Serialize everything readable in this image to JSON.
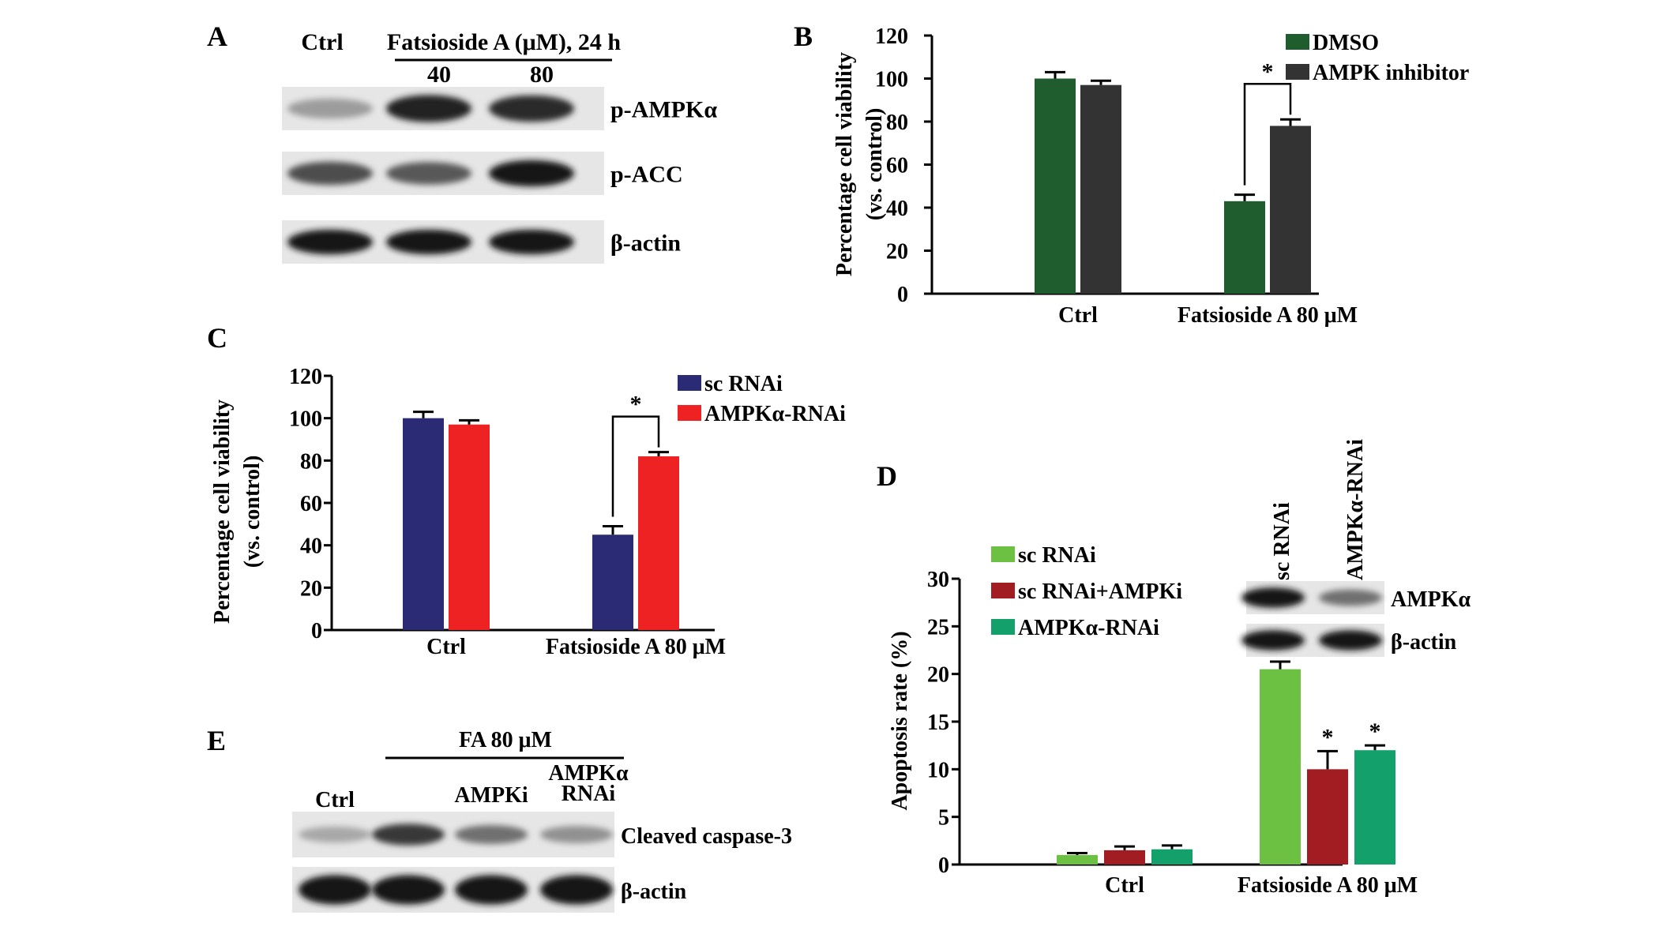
{
  "panels": {
    "A": {
      "letter": "A",
      "ctrl_label": "Ctrl",
      "treatment_label": "Fatsioside A (μM), 24 h",
      "doses": [
        "40",
        "80"
      ],
      "blots": [
        {
          "label": "p-AMPKα",
          "intensity": [
            0.35,
            0.9,
            0.85
          ]
        },
        {
          "label": "p-ACC",
          "intensity": [
            0.7,
            0.65,
            0.95
          ]
        },
        {
          "label": "β-actin",
          "intensity": [
            0.95,
            0.95,
            0.95
          ]
        }
      ]
    },
    "B": {
      "letter": "B"
    },
    "C": {
      "letter": "C"
    },
    "D": {
      "letter": "D",
      "inset_lanes": [
        "sc RNAi",
        "AMPKα-RNAi"
      ],
      "inset_blots": [
        {
          "label": "AMPKα",
          "intensity": [
            0.95,
            0.55
          ]
        },
        {
          "label": "β-actin",
          "intensity": [
            0.95,
            0.95
          ]
        }
      ]
    },
    "E": {
      "letter": "E",
      "group_label": "FA 80 μM",
      "lanes": [
        "Ctrl",
        "",
        "AMPKi",
        "AMPKα RNAi"
      ],
      "blots": [
        {
          "label": "Cleaved caspase-3",
          "intensity": [
            0.3,
            0.8,
            0.55,
            0.4
          ]
        },
        {
          "label": "β-actin",
          "intensity": [
            0.95,
            0.95,
            0.95,
            0.95
          ]
        }
      ]
    }
  },
  "chart_data": [
    {
      "panel": "B",
      "type": "bar",
      "categories": [
        "Ctrl",
        "Fatsioside A 80 μM"
      ],
      "series": [
        {
          "name": "DMSO",
          "color": "#1f5c2e",
          "values": [
            100,
            43
          ],
          "errors": [
            3,
            3
          ]
        },
        {
          "name": "AMPK inhibitor",
          "color": "#333333",
          "values": [
            97,
            78
          ],
          "errors": [
            2,
            3
          ]
        }
      ],
      "ylabel": "Percentage cell viability (vs. control)",
      "xlabel": "",
      "ylim": [
        0,
        120
      ],
      "yticks": [
        0,
        20,
        40,
        60,
        80,
        100,
        120
      ],
      "significance": [
        {
          "category": 1,
          "marker": "*"
        }
      ],
      "legend": "top-right",
      "grid": false
    },
    {
      "panel": "C",
      "type": "bar",
      "categories": [
        "Ctrl",
        "Fatsioside A 80 μM"
      ],
      "series": [
        {
          "name": "sc RNAi",
          "color": "#2a2a75",
          "values": [
            100,
            45
          ],
          "errors": [
            3,
            4
          ]
        },
        {
          "name": "AMPKα-RNAi",
          "color": "#ee2222",
          "values": [
            97,
            82
          ],
          "errors": [
            2,
            2
          ]
        }
      ],
      "ylabel": "Percentage cell viability (vs. control)",
      "xlabel": "",
      "ylim": [
        0,
        120
      ],
      "yticks": [
        0,
        20,
        40,
        60,
        80,
        100,
        120
      ],
      "significance": [
        {
          "category": 1,
          "marker": "*"
        }
      ],
      "legend": "top-right",
      "grid": false
    },
    {
      "panel": "D",
      "type": "bar",
      "categories": [
        "Ctrl",
        "Fatsioside A 80 μM"
      ],
      "series": [
        {
          "name": "sc RNAi",
          "color": "#6cc142",
          "values": [
            1,
            20.5
          ],
          "errors": [
            0.2,
            0.8
          ]
        },
        {
          "name": "sc RNAi+AMPKi",
          "color": "#a11d22",
          "values": [
            1.5,
            10
          ],
          "errors": [
            0.4,
            1.9
          ]
        },
        {
          "name": "AMPKα-RNAi",
          "color": "#14a06a",
          "values": [
            1.6,
            12
          ],
          "errors": [
            0.4,
            0.5
          ]
        }
      ],
      "ylabel": "Apoptosis rate (%)",
      "xlabel": "",
      "ylim": [
        0,
        30
      ],
      "yticks": [
        0,
        5,
        10,
        15,
        20,
        25,
        30
      ],
      "significance_markers": [
        {
          "category": 1,
          "series": 1,
          "marker": "*"
        },
        {
          "category": 1,
          "series": 2,
          "marker": "*"
        }
      ],
      "legend": "top-left",
      "grid": false
    }
  ]
}
